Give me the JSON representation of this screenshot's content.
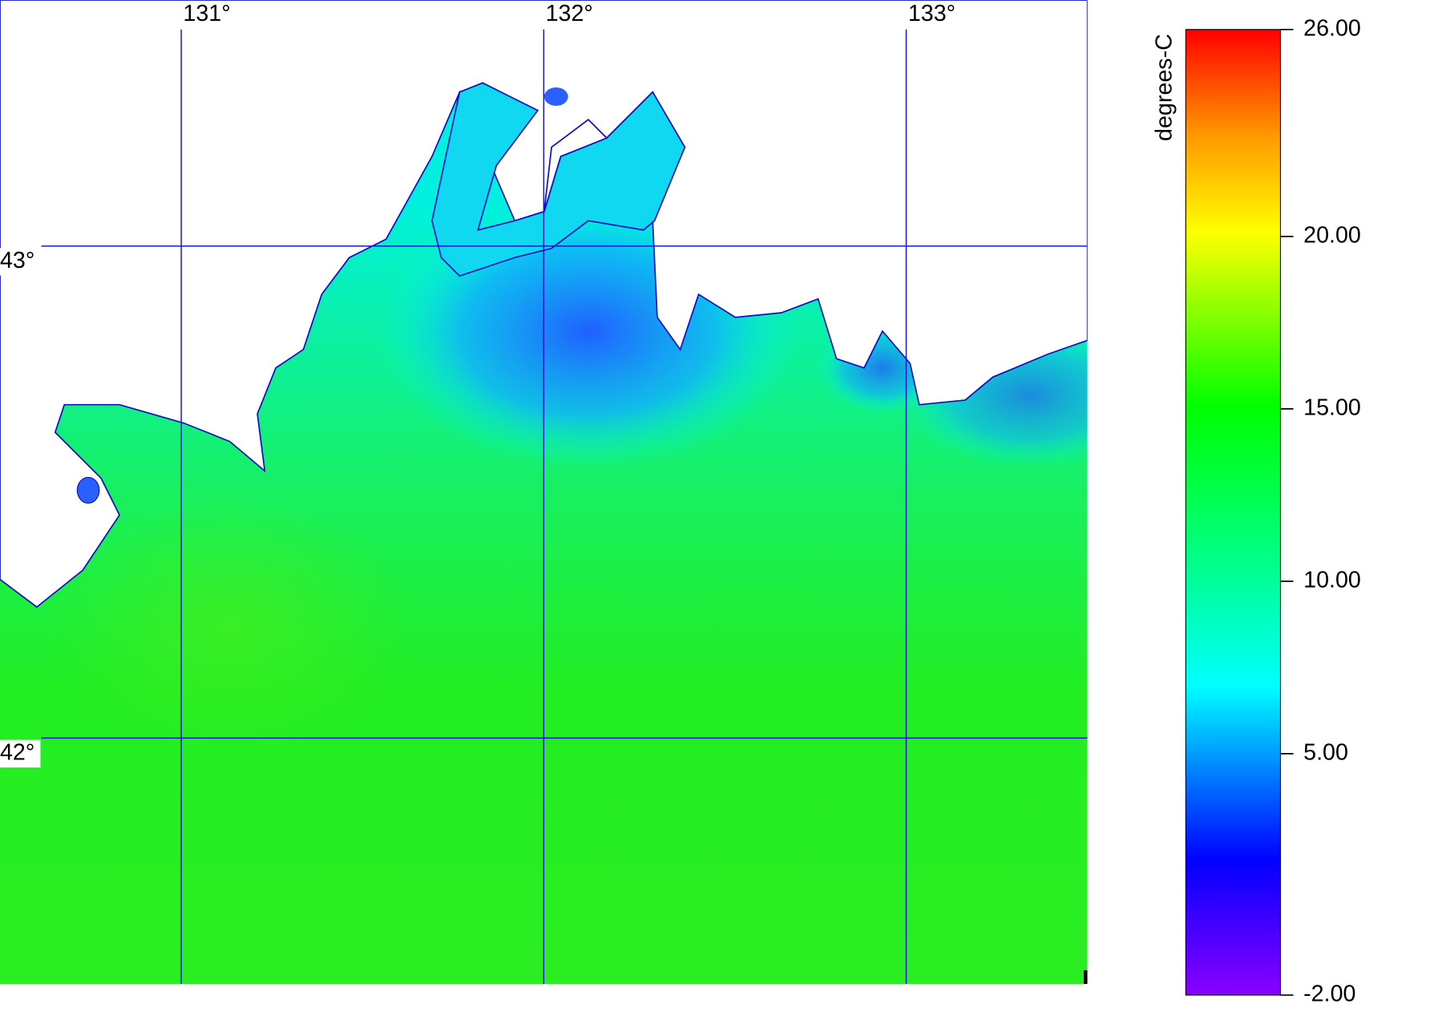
{
  "map": {
    "xlim": [
      130.5,
      133.5
    ],
    "ylim": [
      41.5,
      43.5
    ],
    "xticks": [
      {
        "value": 131,
        "label": "131°"
      },
      {
        "value": 132,
        "label": "132°"
      },
      {
        "value": 133,
        "label": "133°"
      }
    ],
    "yticks": [
      {
        "value": 43,
        "label": "43°"
      },
      {
        "value": 42,
        "label": "42°"
      }
    ],
    "colorbar": {
      "label": "degrees-C",
      "range": [
        -2,
        26
      ],
      "ticks": [
        {
          "value": 26,
          "label": "26.00"
        },
        {
          "value": 20,
          "label": "20.00"
        },
        {
          "value": 15,
          "label": "15.00"
        },
        {
          "value": 10,
          "label": "10.00"
        },
        {
          "value": 5,
          "label": "5.00"
        },
        {
          "value": -2,
          "label": "-2.00"
        }
      ]
    }
  }
}
